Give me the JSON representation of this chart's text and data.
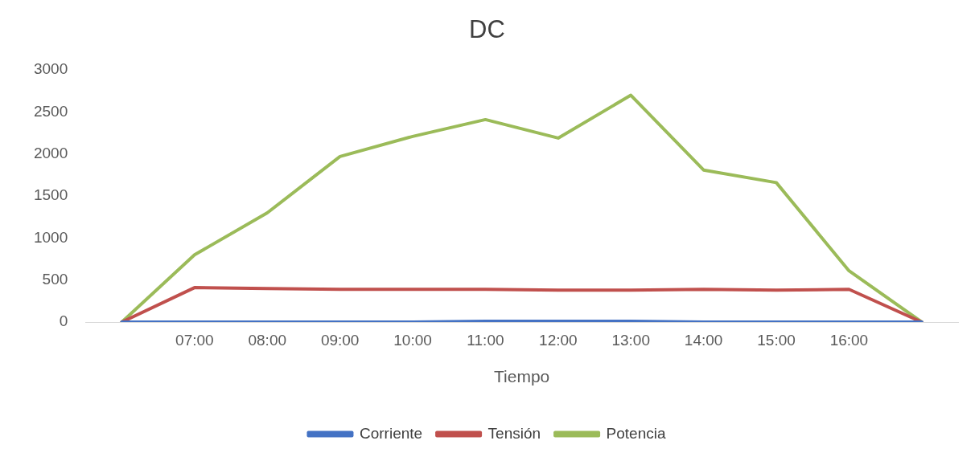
{
  "chart_data": {
    "type": "line",
    "title": "DC",
    "xlabel": "Tiempo",
    "categories": [
      null,
      "07:00",
      "08:00",
      "09:00",
      "10:00",
      "11:00",
      "12:00",
      "13:00",
      "14:00",
      "15:00",
      "16:00",
      null
    ],
    "series": [
      {
        "name": "Corriente",
        "color": "#4472c4",
        "values": [
          0,
          0,
          0,
          0,
          0,
          10,
          10,
          10,
          0,
          0,
          0,
          0
        ]
      },
      {
        "name": "Tensión",
        "color": "#c0504d",
        "values": [
          0,
          410,
          400,
          390,
          390,
          390,
          380,
          380,
          390,
          380,
          390,
          0
        ]
      },
      {
        "name": "Potencia",
        "color": "#9bbb59",
        "values": [
          0,
          800,
          1300,
          1970,
          2210,
          2410,
          2190,
          2700,
          1810,
          1660,
          610,
          0
        ]
      }
    ],
    "ylim": [
      0,
      3000
    ],
    "yticks": [
      0,
      500,
      1000,
      1500,
      2000,
      2500,
      3000
    ],
    "grid": false,
    "legend": "bottom",
    "marker": "none",
    "line_style": "solid"
  }
}
